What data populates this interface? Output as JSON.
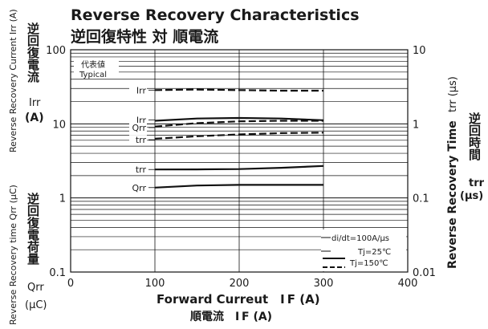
{
  "chart_data": {
    "type": "line",
    "title": "Reverse Recovery Characteristics",
    "subtitle": "逆回復特性 対 順電流",
    "xlabel": "Forward Curreut　I F (A)",
    "xlabel_jp": "順電流　I F (A)",
    "ylabel_left_upper": "Reverse Recovery Current  Irr (A)",
    "ylabel_left_upper_jp": "逆回復電流",
    "ylabel_left_upper_sym": "Irr",
    "ylabel_left_upper_unit": "(A)",
    "ylabel_left_lower": "Reverse Recovery time  Qrr (μC)",
    "ylabel_left_lower_jp": "逆回復電荷量",
    "ylabel_left_lower_sym": "Qrr",
    "ylabel_left_lower_unit": "(μC)",
    "ylabel_right": "Reverse Recovery Time",
    "ylabel_right_sym": "trr (μs)",
    "ylabel_right_jp": "逆回時間",
    "ylabel_right_sym2": "trr",
    "ylabel_right_unit": "(μs)",
    "xlim": [
      0,
      400
    ],
    "x_ticks": [
      "0",
      "100",
      "200",
      "300",
      "400"
    ],
    "ylim_left": [
      0.1,
      100
    ],
    "y_scale": "log",
    "y_ticks_left": [
      "100",
      "10",
      "1",
      "0.1"
    ],
    "y_ticks_right": [
      "10",
      "1",
      "0.1",
      "0.01"
    ],
    "grid": true,
    "legend_box": {
      "jp": "代表値",
      "en": "Typical"
    },
    "conditions": {
      "text": "di/dt=100A/μs",
      "items": [
        {
          "label": "Tj=25℃",
          "style": "solid"
        },
        {
          "label": "Tj=150℃",
          "style": "dashed"
        }
      ]
    },
    "series": [
      {
        "name": "Irr",
        "temp": "150",
        "style": "dashed",
        "x": [
          100,
          150,
          200,
          250,
          300
        ],
        "y": [
          28.5,
          29.0,
          28.5,
          28.0,
          28.0
        ]
      },
      {
        "name": "Irr",
        "temp": "25",
        "style": "solid",
        "x": [
          100,
          150,
          200,
          250,
          300
        ],
        "y": [
          11.0,
          11.8,
          12.0,
          11.8,
          11.2
        ]
      },
      {
        "name": "Qrr",
        "temp": "150",
        "style": "dashed",
        "x": [
          100,
          150,
          200,
          250,
          300
        ],
        "y": [
          9.2,
          10.2,
          10.8,
          11.0,
          11.0
        ]
      },
      {
        "name": "trr",
        "temp": "150",
        "style": "dashed",
        "x": [
          100,
          150,
          200,
          250,
          300
        ],
        "y": [
          6.3,
          6.8,
          7.2,
          7.5,
          7.6
        ]
      },
      {
        "name": "trr",
        "temp": "25",
        "style": "solid",
        "x": [
          100,
          150,
          200,
          250,
          300
        ],
        "y": [
          2.42,
          2.43,
          2.45,
          2.55,
          2.7
        ]
      },
      {
        "name": "Qrr",
        "temp": "25",
        "style": "solid",
        "x": [
          100,
          150,
          200,
          250,
          300
        ],
        "y": [
          1.38,
          1.47,
          1.5,
          1.5,
          1.5
        ]
      }
    ],
    "series_labels": [
      {
        "text": "Irr",
        "x": 100,
        "y": 28.5
      },
      {
        "text": "Irr",
        "x": 100,
        "y": 11.3
      },
      {
        "text": "Qrr",
        "x": 100,
        "y": 8.9
      },
      {
        "text": "trr",
        "x": 100,
        "y": 6.1
      },
      {
        "text": "trr",
        "x": 100,
        "y": 2.42
      },
      {
        "text": "Qrr",
        "x": 100,
        "y": 1.38
      }
    ]
  }
}
